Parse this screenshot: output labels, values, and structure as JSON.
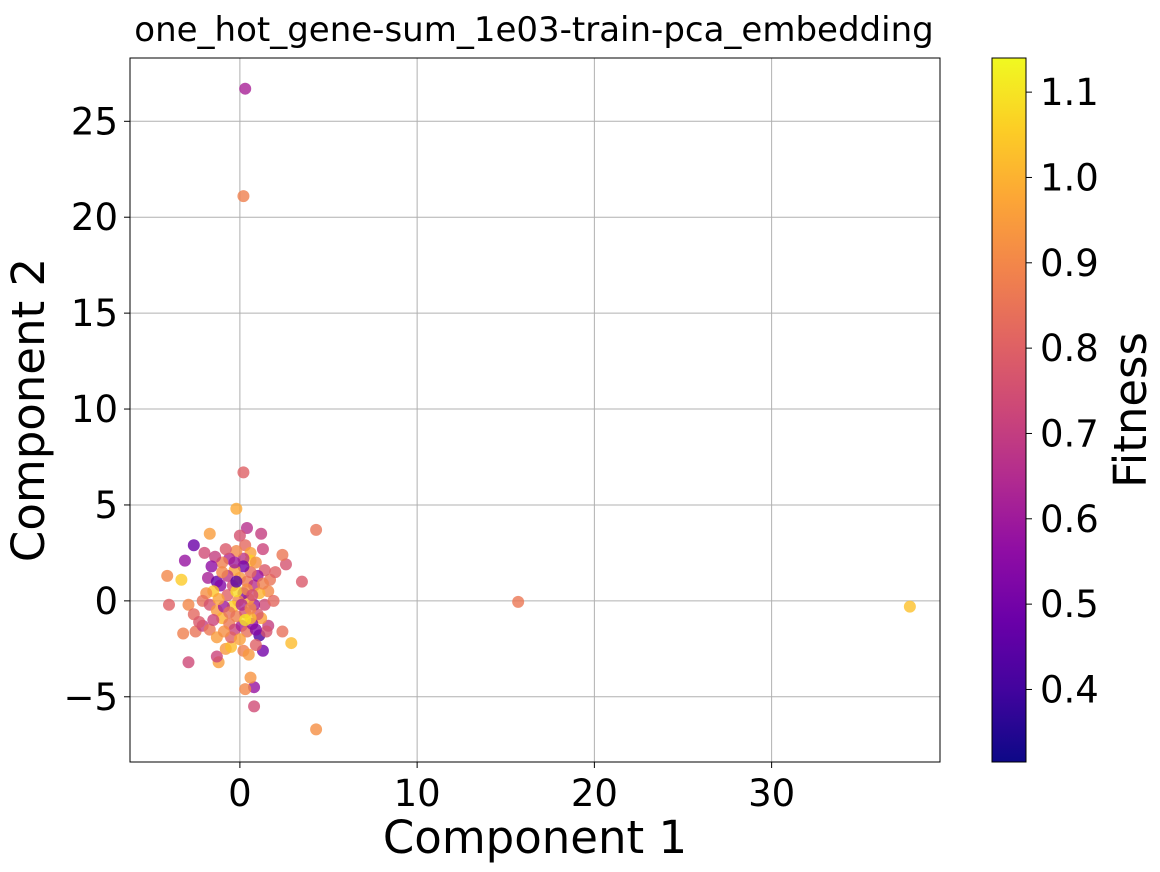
{
  "chart_data": {
    "type": "scatter",
    "title": "one_hot_gene-sum_1e03-train-pca_embedding",
    "xlabel": "Component 1",
    "ylabel": "Component 2",
    "xlim": [
      -6.2,
      39.5
    ],
    "ylim": [
      -8.4,
      28.3
    ],
    "xticks": [
      0,
      10,
      20,
      30
    ],
    "xtick_labels": [
      "0",
      "10",
      "20",
      "30"
    ],
    "yticks": [
      -5,
      0,
      5,
      10,
      15,
      20,
      25
    ],
    "ytick_labels": [
      "−5",
      "0",
      "5",
      "10",
      "15",
      "20",
      "25"
    ],
    "grid": true,
    "colorbar": {
      "label": "Fitness",
      "range": [
        0.315,
        1.14
      ],
      "colormap": "plasma",
      "ticks": [
        0.4,
        0.5,
        0.6,
        0.7,
        0.8,
        0.9,
        1.0,
        1.1
      ],
      "tick_labels": [
        "0.4",
        "0.5",
        "0.6",
        "0.7",
        "0.8",
        "0.9",
        "1.0",
        "1.1"
      ]
    },
    "points": [
      {
        "x": 0.3,
        "y": 26.7,
        "fitness": 0.62
      },
      {
        "x": 0.2,
        "y": 21.1,
        "fitness": 0.88
      },
      {
        "x": 37.8,
        "y": -0.3,
        "fitness": 1.03
      },
      {
        "x": 15.7,
        "y": -0.05,
        "fitness": 0.86
      },
      {
        "x": 4.3,
        "y": 3.7,
        "fitness": 0.85
      },
      {
        "x": 4.3,
        "y": -6.7,
        "fitness": 0.92
      },
      {
        "x": 0.2,
        "y": 6.7,
        "fitness": 0.8
      },
      {
        "x": -0.2,
        "y": 4.8,
        "fitness": 0.98
      },
      {
        "x": 3.5,
        "y": 1.0,
        "fitness": 0.78
      },
      {
        "x": 2.6,
        "y": 1.9,
        "fitness": 0.76
      },
      {
        "x": 2.4,
        "y": 2.4,
        "fitness": 0.86
      },
      {
        "x": 2.9,
        "y": -2.2,
        "fitness": 1.02
      },
      {
        "x": 2.4,
        "y": -1.6,
        "fitness": 0.84
      },
      {
        "x": 0.8,
        "y": -5.5,
        "fitness": 0.74
      },
      {
        "x": 0.8,
        "y": -4.5,
        "fitness": 0.58
      },
      {
        "x": 0.6,
        "y": -4.0,
        "fitness": 0.93
      },
      {
        "x": 0.3,
        "y": -4.6,
        "fitness": 0.9
      },
      {
        "x": 1.3,
        "y": -2.6,
        "fitness": 0.5
      },
      {
        "x": 1.1,
        "y": -1.8,
        "fitness": 0.42
      },
      {
        "x": -1.2,
        "y": -3.2,
        "fitness": 0.95
      },
      {
        "x": -1.3,
        "y": -2.9,
        "fitness": 0.72
      },
      {
        "x": -2.9,
        "y": -3.2,
        "fitness": 0.73
      },
      {
        "x": -3.2,
        "y": -1.7,
        "fitness": 0.88
      },
      {
        "x": -2.5,
        "y": -1.6,
        "fitness": 0.85
      },
      {
        "x": -4.0,
        "y": -0.2,
        "fitness": 0.8
      },
      {
        "x": -4.1,
        "y": 1.3,
        "fitness": 0.9
      },
      {
        "x": -3.3,
        "y": 1.1,
        "fitness": 1.05
      },
      {
        "x": -3.1,
        "y": 2.1,
        "fitness": 0.58
      },
      {
        "x": -2.6,
        "y": 2.9,
        "fitness": 0.48
      },
      {
        "x": -1.7,
        "y": 3.5,
        "fitness": 0.95
      },
      {
        "x": -2.0,
        "y": 2.5,
        "fitness": 0.74
      },
      {
        "x": -2.9,
        "y": -0.2,
        "fitness": 0.9
      },
      {
        "x": -2.6,
        "y": -0.7,
        "fitness": 0.82
      },
      {
        "x": -2.1,
        "y": -1.3,
        "fitness": 0.7
      },
      {
        "x": -1.7,
        "y": -1.5,
        "fitness": 0.86
      },
      {
        "x": -1.3,
        "y": -1.9,
        "fitness": 0.95
      },
      {
        "x": -0.8,
        "y": -2.5,
        "fitness": 0.94
      },
      {
        "x": -0.5,
        "y": -2.4,
        "fitness": 1.02
      },
      {
        "x": 0.2,
        "y": -2.6,
        "fitness": 0.88
      },
      {
        "x": 0.5,
        "y": -2.8,
        "fitness": 0.94
      },
      {
        "x": 0.9,
        "y": -2.3,
        "fitness": 0.8
      },
      {
        "x": 1.6,
        "y": -1.3,
        "fitness": 0.7
      },
      {
        "x": 1.5,
        "y": -1.6,
        "fitness": 0.76
      },
      {
        "x": 1.2,
        "y": -0.9,
        "fitness": 0.96
      },
      {
        "x": 1.4,
        "y": -0.2,
        "fitness": 0.74
      },
      {
        "x": 1.6,
        "y": 0.5,
        "fitness": 0.9
      },
      {
        "x": 1.7,
        "y": 1.1,
        "fitness": 0.85
      },
      {
        "x": 1.4,
        "y": 1.6,
        "fitness": 0.78
      },
      {
        "x": 1.3,
        "y": 2.7,
        "fitness": 0.72
      },
      {
        "x": 1.2,
        "y": 3.5,
        "fitness": 0.7
      },
      {
        "x": 0.4,
        "y": 3.8,
        "fitness": 0.66
      },
      {
        "x": 0.0,
        "y": 3.4,
        "fitness": 0.76
      },
      {
        "x": 0.3,
        "y": 2.9,
        "fitness": 0.82
      },
      {
        "x": 0.6,
        "y": 2.5,
        "fitness": 0.96
      },
      {
        "x": 0.6,
        "y": 2.1,
        "fitness": 1.06
      },
      {
        "x": 0.2,
        "y": 2.2,
        "fitness": 0.68
      },
      {
        "x": -0.2,
        "y": 2.6,
        "fitness": 0.9
      },
      {
        "x": -0.6,
        "y": 2.2,
        "fitness": 0.64
      },
      {
        "x": -1.0,
        "y": 2.0,
        "fitness": 0.88
      },
      {
        "x": -1.4,
        "y": 2.3,
        "fitness": 0.7
      },
      {
        "x": -1.6,
        "y": 1.8,
        "fitness": 0.56
      },
      {
        "x": -1.8,
        "y": 1.2,
        "fitness": 0.62
      },
      {
        "x": -1.3,
        "y": 1.0,
        "fitness": 0.47
      },
      {
        "x": -1.1,
        "y": 0.8,
        "fitness": 0.54
      },
      {
        "x": -1.5,
        "y": 0.5,
        "fitness": 1.04
      },
      {
        "x": -1.9,
        "y": 0.4,
        "fitness": 0.92
      },
      {
        "x": -2.1,
        "y": 0.0,
        "fitness": 0.84
      },
      {
        "x": -1.7,
        "y": -0.2,
        "fitness": 0.76
      },
      {
        "x": -1.3,
        "y": -0.5,
        "fitness": 0.94
      },
      {
        "x": -1.0,
        "y": -0.9,
        "fitness": 1.0
      },
      {
        "x": -0.6,
        "y": -1.2,
        "fitness": 0.86
      },
      {
        "x": -0.3,
        "y": -1.5,
        "fitness": 0.72
      },
      {
        "x": 0.1,
        "y": -1.3,
        "fitness": 0.62
      },
      {
        "x": 0.4,
        "y": -1.6,
        "fitness": 0.84
      },
      {
        "x": 0.7,
        "y": -1.2,
        "fitness": 0.56
      },
      {
        "x": 1.0,
        "y": -0.7,
        "fitness": 0.78
      },
      {
        "x": 0.8,
        "y": -0.2,
        "fitness": 0.6
      },
      {
        "x": 0.5,
        "y": 0.1,
        "fitness": 0.98
      },
      {
        "x": 0.2,
        "y": 0.4,
        "fitness": 0.52
      },
      {
        "x": -0.1,
        "y": 0.0,
        "fitness": 0.9
      },
      {
        "x": -0.4,
        "y": -0.3,
        "fitness": 1.06
      },
      {
        "x": -0.7,
        "y": 0.3,
        "fitness": 0.8
      },
      {
        "x": -0.4,
        "y": 0.8,
        "fitness": 0.74
      },
      {
        "x": 0.0,
        "y": 1.2,
        "fitness": 0.94
      },
      {
        "x": 0.4,
        "y": 1.0,
        "fitness": 0.86
      },
      {
        "x": 0.8,
        "y": 0.8,
        "fitness": 0.66
      },
      {
        "x": 1.1,
        "y": 0.4,
        "fitness": 1.0
      },
      {
        "x": 1.0,
        "y": 1.3,
        "fitness": 0.58
      },
      {
        "x": 0.6,
        "y": 1.5,
        "fitness": 0.82
      },
      {
        "x": 0.2,
        "y": 1.8,
        "fitness": 0.5
      },
      {
        "x": -0.3,
        "y": 1.6,
        "fitness": 0.96
      },
      {
        "x": -0.7,
        "y": 1.3,
        "fitness": 0.68
      },
      {
        "x": -1.0,
        "y": 1.5,
        "fitness": 0.9
      },
      {
        "x": -0.9,
        "y": -0.3,
        "fitness": 0.6
      },
      {
        "x": -0.2,
        "y": -0.8,
        "fitness": 0.88
      },
      {
        "x": 0.3,
        "y": -0.6,
        "fitness": 0.76
      },
      {
        "x": 0.6,
        "y": -0.9,
        "fitness": 1.02
      },
      {
        "x": 0.9,
        "y": -1.5,
        "fitness": 0.54
      },
      {
        "x": -0.5,
        "y": -1.9,
        "fitness": 0.8
      },
      {
        "x": -0.9,
        "y": -1.6,
        "fitness": 0.92
      },
      {
        "x": -1.5,
        "y": -1.0,
        "fitness": 0.72
      },
      {
        "x": -2.3,
        "y": -1.1,
        "fitness": 0.78
      },
      {
        "x": -0.2,
        "y": 0.5,
        "fitness": 1.08
      },
      {
        "x": 0.1,
        "y": -0.2,
        "fitness": 0.64
      },
      {
        "x": 0.4,
        "y": 0.6,
        "fitness": 0.92
      },
      {
        "x": -0.6,
        "y": -0.6,
        "fitness": 0.84
      },
      {
        "x": 0.7,
        "y": 0.3,
        "fitness": 0.74
      },
      {
        "x": -1.2,
        "y": 0.1,
        "fitness": 0.96
      },
      {
        "x": 1.3,
        "y": 0.9,
        "fitness": 0.88
      },
      {
        "x": 1.9,
        "y": 0.0,
        "fitness": 0.82
      },
      {
        "x": 2.0,
        "y": 1.5,
        "fitness": 0.8
      },
      {
        "x": -0.3,
        "y": 2.0,
        "fitness": 0.6
      },
      {
        "x": 0.9,
        "y": 2.0,
        "fitness": 0.92
      },
      {
        "x": -0.8,
        "y": 2.7,
        "fitness": 0.78
      },
      {
        "x": 0.0,
        "y": -2.0,
        "fitness": 0.96
      },
      {
        "x": 0.3,
        "y": -1.0,
        "fitness": 1.1
      },
      {
        "x": -0.2,
        "y": 1.0,
        "fitness": 0.44
      },
      {
        "x": 0.6,
        "y": -0.4,
        "fitness": 0.9
      }
    ]
  }
}
